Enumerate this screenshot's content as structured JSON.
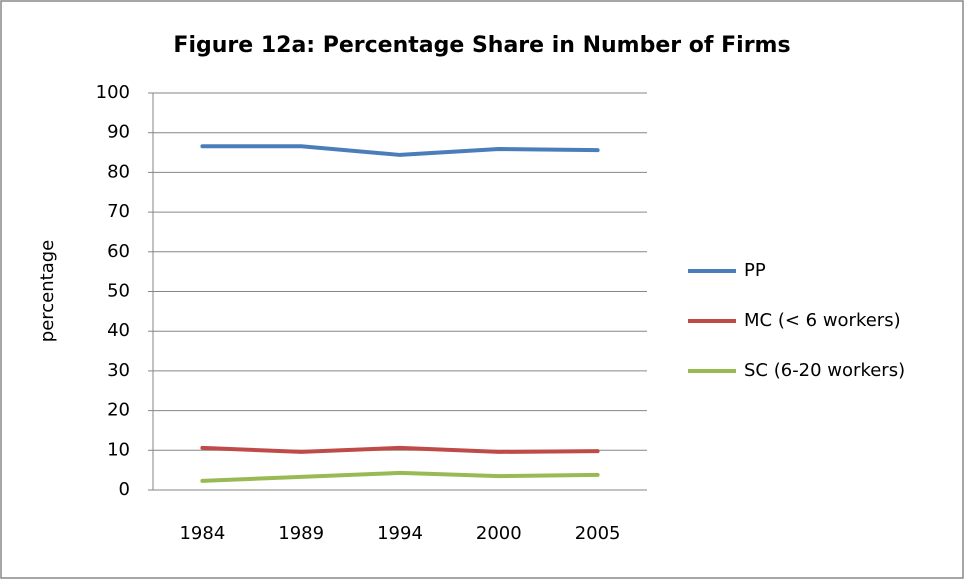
{
  "chart_data": {
    "type": "line",
    "title": "Figure 12a: Percentage Share in Number of Firms",
    "y_label": "percentage",
    "categories": [
      "1984",
      "1989",
      "1994",
      "2000",
      "2005"
    ],
    "series": [
      {
        "name": "PP",
        "color": "#4a7ebb",
        "values": [
          86.6,
          86.6,
          84.4,
          85.9,
          85.6
        ]
      },
      {
        "name": "MC (< 6 workers)",
        "color": "#be4b48",
        "values": [
          10.6,
          9.6,
          10.6,
          9.6,
          9.8
        ]
      },
      {
        "name": "SC (6-20 workers)",
        "color": "#98b954",
        "values": [
          2.3,
          3.3,
          4.3,
          3.5,
          3.8
        ]
      }
    ],
    "ylim": [
      0,
      100
    ],
    "yticks": [
      0,
      10,
      20,
      30,
      40,
      50,
      60,
      70,
      80,
      90,
      100
    ],
    "grid": true,
    "legend": "right"
  }
}
